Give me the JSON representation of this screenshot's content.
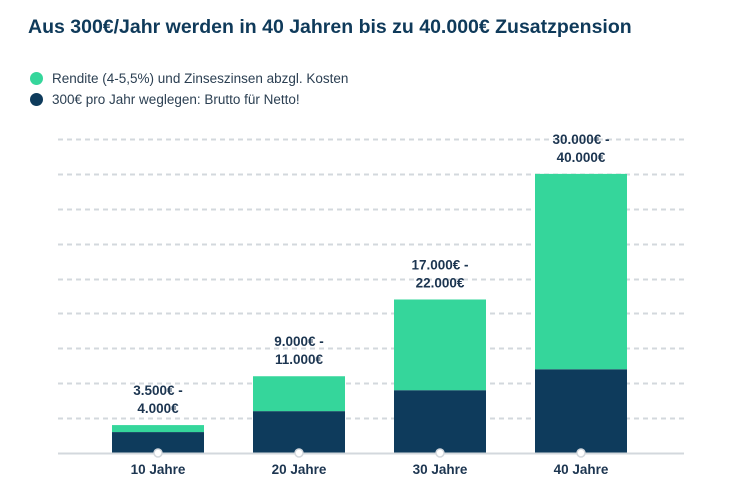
{
  "title": "Aus 300€/Jahr werden in 40 Jahren bis zu 40.000€ Zusatzpension",
  "legend": [
    {
      "label": "Rendite (4-5,5%) und Zinseszinsen abzgl. Kosten",
      "color": "#35d69b"
    },
    {
      "label": "300€ pro Jahr weglegen: Brutto für Netto!",
      "color": "#0e3b5c"
    }
  ],
  "chart_data": {
    "type": "bar",
    "stacked": true,
    "categories": [
      "10 Jahre",
      "20 Jahre",
      "30 Jahre",
      "40 Jahre"
    ],
    "series": [
      {
        "name": "300€ pro Jahr weglegen: Brutto für Netto!",
        "color": "#0e3b5c",
        "values": [
          3000,
          6000,
          9000,
          12000
        ]
      },
      {
        "name": "Rendite (4-5,5%) und Zinseszinsen abzgl. Kosten",
        "color": "#35d69b",
        "values": [
          1000,
          5000,
          13000,
          28000
        ]
      }
    ],
    "data_labels": [
      [
        "3.500€ -",
        "4.000€"
      ],
      [
        "9.000€ -",
        "11.000€"
      ],
      [
        "17.000€ -",
        "22.000€"
      ],
      [
        "30.000€ -",
        "40.000€"
      ]
    ],
    "ylim": [
      0,
      45000
    ],
    "grid": true,
    "gridline_color": "#d3d8dd",
    "axis_color": "#d3d8dd",
    "label_color": "#1c3550"
  }
}
